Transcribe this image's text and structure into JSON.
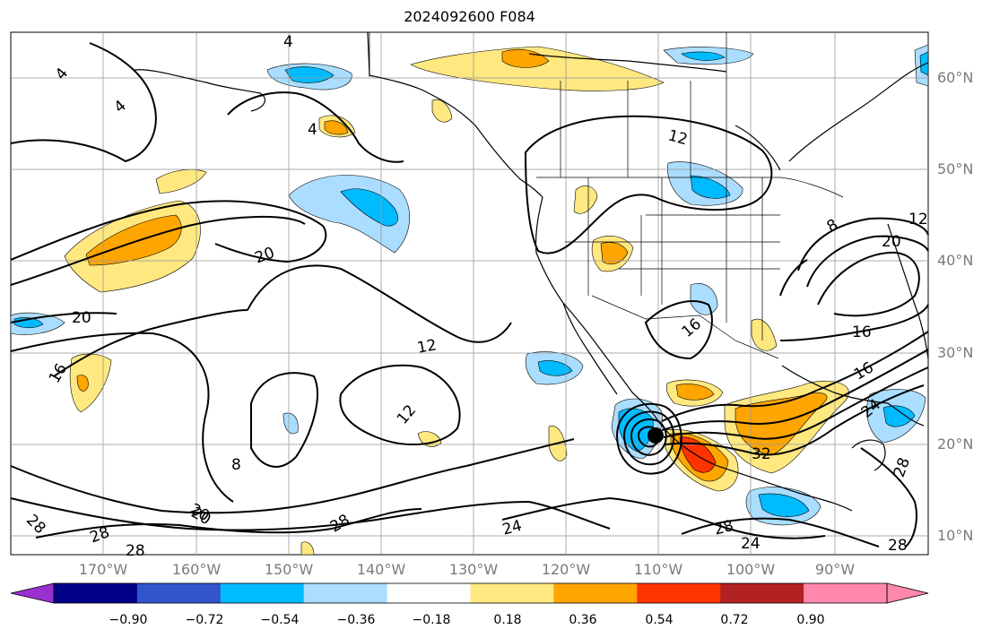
{
  "title": "2024092600 F084",
  "lat_labels": [
    "60°N",
    "50°N",
    "40°N",
    "30°N",
    "20°N",
    "10°N"
  ],
  "lon_labels": [
    "170°W",
    "160°W",
    "150°W",
    "140°W",
    "130°W",
    "120°W",
    "110°W",
    "100°W",
    "90°W"
  ],
  "contour_labels": [
    "4",
    "4",
    "4",
    "4",
    "12",
    "20",
    "20",
    "12",
    "12",
    "16",
    "20",
    "16",
    "8",
    "12",
    "20",
    "16",
    "16",
    "24",
    "32",
    "28",
    "20",
    "28",
    "28",
    "28",
    "24",
    "28",
    "24",
    "28",
    "28",
    "8"
  ],
  "colorbar": {
    "tick_labels": [
      "−0.90",
      "−0.72",
      "−0.54",
      "−0.36",
      "−0.18",
      "0.18",
      "0.36",
      "0.54",
      "0.72",
      "0.90"
    ],
    "colors": [
      "#9b30d0",
      "#000088",
      "#3355cc",
      "#00bbff",
      "#aaddff",
      "#ffffff",
      "#ffe880",
      "#ffa500",
      "#ff3300",
      "#b22222",
      "#ff88aa",
      "#ff88aa"
    ]
  },
  "colors": {
    "light_blue": "#aaddff",
    "blue": "#00bbff",
    "yellow": "#ffe880",
    "orange": "#ffa500",
    "red": "#ff3300",
    "axis_text": "#7a7a7a"
  },
  "marker": "storm-center-dot"
}
